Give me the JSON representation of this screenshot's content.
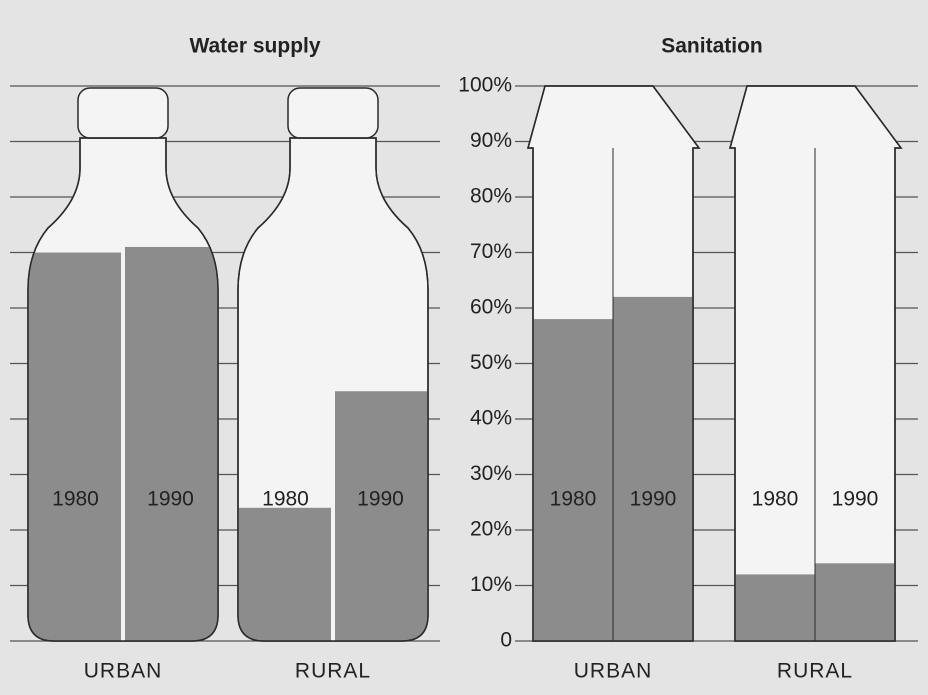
{
  "chart_data": {
    "type": "bar",
    "ylim": [
      0,
      100
    ],
    "yticks": [
      0,
      {
        "value": 10,
        "label": "10%"
      },
      {
        "value": 20,
        "label": "20%"
      },
      {
        "value": 30,
        "label": "30%"
      },
      {
        "value": 40,
        "label": "40%"
      },
      {
        "value": 50,
        "label": "50%"
      },
      {
        "value": 60,
        "label": "60%"
      },
      {
        "value": 70,
        "label": "70%"
      },
      {
        "value": 80,
        "label": "80%"
      },
      {
        "value": 90,
        "label": "90%"
      },
      {
        "value": 100,
        "label": "100%"
      }
    ],
    "grid": true,
    "color": "#8c8c8c",
    "panels": [
      {
        "title": "Water supply",
        "shape": "bottle",
        "categories": [
          "URBAN",
          "RURAL"
        ],
        "series": [
          {
            "name": "1980",
            "values": [
              70,
              24
            ]
          },
          {
            "name": "1990",
            "values": [
              71,
              45
            ]
          }
        ]
      },
      {
        "title": "Sanitation",
        "shape": "house",
        "categories": [
          "URBAN",
          "RURAL"
        ],
        "series": [
          {
            "name": "1980",
            "values": [
              58,
              12
            ]
          },
          {
            "name": "1990",
            "values": [
              62,
              14
            ]
          }
        ]
      }
    ]
  }
}
